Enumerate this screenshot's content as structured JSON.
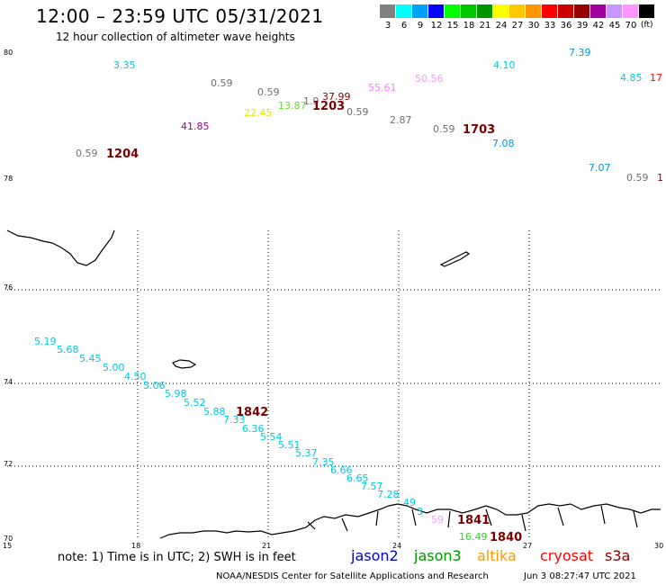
{
  "title": "12:00 – 23:59 UTC 05/31/2021",
  "subtitle": "12 hour collection of altimeter wave heights",
  "legend": {
    "unit": "(ft)",
    "items": [
      {
        "color": "#808080",
        "label": "3"
      },
      {
        "color": "#00ffff",
        "label": "6"
      },
      {
        "color": "#00a0ff",
        "label": "9"
      },
      {
        "color": "#0000ff",
        "label": "12"
      },
      {
        "color": "#00ff00",
        "label": "15"
      },
      {
        "color": "#00c800",
        "label": "18"
      },
      {
        "color": "#009600",
        "label": "21"
      },
      {
        "color": "#ffff00",
        "label": "24"
      },
      {
        "color": "#ffc800",
        "label": "27"
      },
      {
        "color": "#ff9600",
        "label": "30"
      },
      {
        "color": "#ff0000",
        "label": "33"
      },
      {
        "color": "#c80000",
        "label": "36"
      },
      {
        "color": "#960000",
        "label": "39"
      },
      {
        "color": "#a000a0",
        "label": "42"
      },
      {
        "color": "#c896ff",
        "label": "45"
      },
      {
        "color": "#ff96ff",
        "label": "70"
      },
      {
        "color": "#000000",
        "label": ""
      }
    ]
  },
  "lat_labels": [
    "80",
    "78",
    "76",
    "74",
    "72",
    "70"
  ],
  "lon_labels": [
    "15",
    "18",
    "21",
    "24",
    "27",
    "30"
  ],
  "wave_labels": [
    {
      "text": "3.35",
      "color": "#00c8e6"
    },
    {
      "text": "0.59",
      "color": "#707070"
    },
    {
      "text": "0.59",
      "color": "#707070"
    },
    {
      "text": "1.9",
      "color": "#707070"
    },
    {
      "text": "37.99",
      "color": "#8b0000"
    },
    {
      "text": "55.61",
      "color": "#ff80ff"
    },
    {
      "text": "50.56",
      "color": "#ff99ff"
    },
    {
      "text": "4.10",
      "color": "#00c8e6"
    },
    {
      "text": "7.39",
      "color": "#0099dd"
    },
    {
      "text": "4.85",
      "color": "#00c8e6"
    },
    {
      "text": "17",
      "color": "#ff0000"
    },
    {
      "text": "22.45",
      "color": "#e6e600"
    },
    {
      "text": "13.87",
      "color": "#66dd33"
    },
    {
      "text": "0.59",
      "color": "#707070"
    },
    {
      "text": "2.87",
      "color": "#707070"
    },
    {
      "text": "41.85",
      "color": "#990099"
    },
    {
      "text": "0.59",
      "color": "#707070"
    },
    {
      "text": "7.08",
      "color": "#0099dd"
    },
    {
      "text": "0.59",
      "color": "#707070"
    },
    {
      "text": "7.07",
      "color": "#0099dd"
    },
    {
      "text": "0.59",
      "color": "#707070"
    },
    {
      "text": "1",
      "color": "#8b0000"
    },
    {
      "text": "5.19",
      "color": "#00c8e6"
    },
    {
      "text": "5.68",
      "color": "#00c8e6"
    },
    {
      "text": "5.45",
      "color": "#00c8e6"
    },
    {
      "text": "5.00",
      "color": "#00c8e6"
    },
    {
      "text": "4.50",
      "color": "#00c8e6"
    },
    {
      "text": "5.06",
      "color": "#00c8e6"
    },
    {
      "text": "5.98",
      "color": "#00c8e6"
    },
    {
      "text": "5.52",
      "color": "#00c8e6"
    },
    {
      "text": "5.88",
      "color": "#00c8e6"
    },
    {
      "text": "7.33",
      "color": "#00c8e6"
    },
    {
      "text": "6.36",
      "color": "#00c8e6"
    },
    {
      "text": "5.54",
      "color": "#00c8e6"
    },
    {
      "text": "5.51",
      "color": "#00c8e6"
    },
    {
      "text": "5.37",
      "color": "#00c8e6"
    },
    {
      "text": "7.35",
      "color": "#00c8e6"
    },
    {
      "text": "6.66",
      "color": "#00c8e6"
    },
    {
      "text": "6.65",
      "color": "#00c8e6"
    },
    {
      "text": "7.57",
      "color": "#00c8e6"
    },
    {
      "text": "7.28",
      "color": "#00c8e6"
    },
    {
      "text": "49",
      "color": "#00c8e6"
    },
    {
      "text": "3",
      "color": "#00c8e6"
    },
    {
      "text": "59",
      "color": "#ff99ff"
    },
    {
      "text": "16.49",
      "color": "#33cc33"
    }
  ],
  "time_labels": [
    {
      "text": "1204",
      "color": "#7a0000"
    },
    {
      "text": "1203",
      "color": "#7a0000"
    },
    {
      "text": "1703",
      "color": "#7a0000"
    },
    {
      "text": "1842",
      "color": "#7a0000"
    },
    {
      "text": "1841",
      "color": "#7a0000"
    },
    {
      "text": "1840",
      "color": "#7a0000"
    }
  ],
  "note": "note:  1) Time is in UTC;  2) SWH is in feet",
  "satellites": [
    {
      "name": "jason2",
      "color": "#0000dd"
    },
    {
      "name": "jason3",
      "color": "#009600"
    },
    {
      "name": "altika",
      "color": "#ff9900"
    },
    {
      "name": "cryosat",
      "color": "#ff0000"
    },
    {
      "name": "s3a",
      "color": "#8b0000"
    }
  ],
  "credit": "NOAA/NESDIS Center for Satellite Applications and Research",
  "timestamp": "Jun  3 08:27:47 UTC 2021"
}
